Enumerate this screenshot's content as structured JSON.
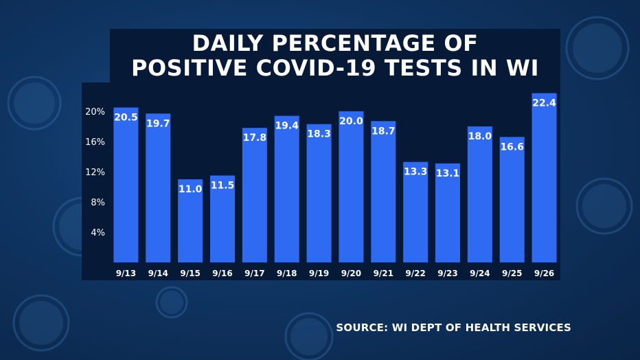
{
  "title_lines": [
    "DAILY PERCENTAGE OF",
    "POSITIVE COVID-19 TESTS IN WI"
  ],
  "source": "SOURCE: WI DEPT OF HEALTH SERVICES",
  "colors": {
    "bar": "#2f6bf2",
    "panel": "#061a38",
    "text": "#ffffff"
  },
  "chart_data": {
    "type": "bar",
    "title": "DAILY PERCENTAGE OF POSITIVE COVID-19 TESTS IN WI",
    "categories": [
      "9/13",
      "9/14",
      "9/15",
      "9/16",
      "9/17",
      "9/18",
      "9/19",
      "9/20",
      "9/21",
      "9/22",
      "9/23",
      "9/24",
      "9/25",
      "9/26"
    ],
    "values": [
      20.5,
      19.7,
      11.0,
      11.5,
      17.8,
      19.4,
      18.3,
      20.0,
      18.7,
      13.3,
      13.1,
      18.0,
      16.6,
      22.4
    ],
    "value_labels": [
      "20.5",
      "19.7",
      "11.0",
      "11.5",
      "17.8",
      "19.4",
      "18.3",
      "20.0",
      "18.7",
      "13.3",
      "13.1",
      "18.0",
      "16.6",
      "22.4"
    ],
    "yticks": [
      4,
      8,
      12,
      16,
      20
    ],
    "ytick_labels": [
      "4%",
      "8%",
      "12%",
      "16%",
      "20%"
    ],
    "ylim": [
      0,
      24
    ],
    "grid": false,
    "legend": "none"
  }
}
